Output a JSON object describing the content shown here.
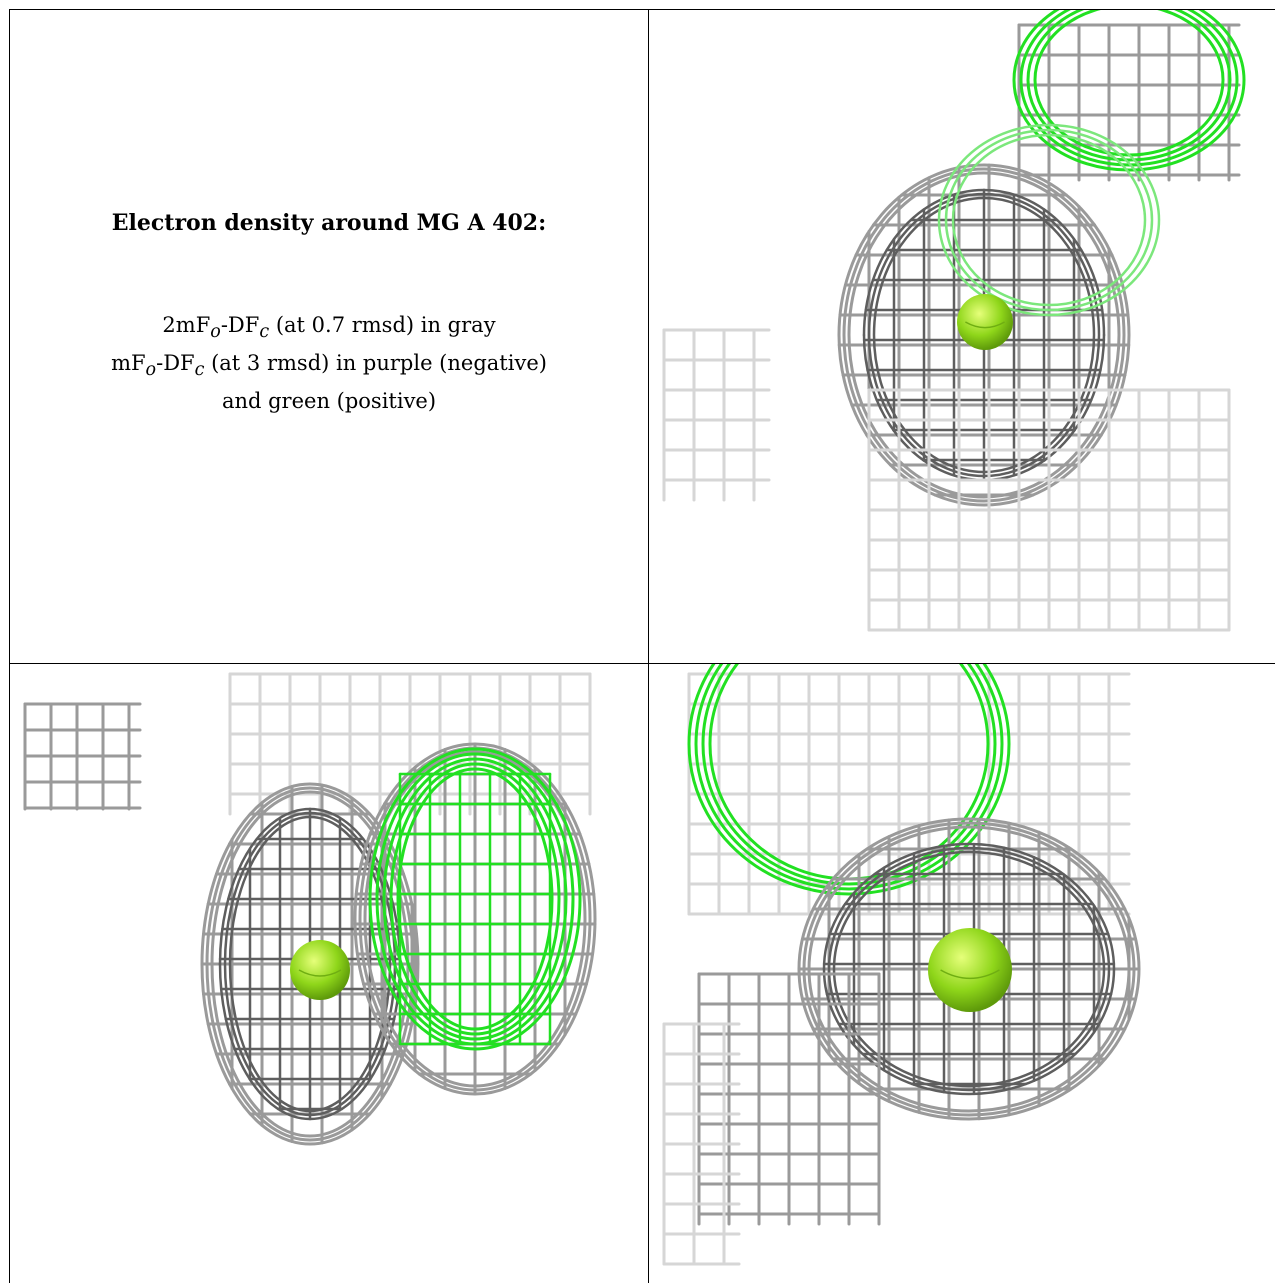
{
  "caption": {
    "title": "Electron density around MG A 402:",
    "line1": {
      "a": "2mF",
      "a_sub": "o",
      "b": "-DF",
      "b_sub": "c",
      "rest": " (at 0.7 rmsd) in gray"
    },
    "line2": {
      "a": "mF",
      "a_sub": "o",
      "b": "-DF",
      "b_sub": "c",
      "rest": " (at 3 rmsd) in purple (negative)"
    },
    "line3": "and green (positive)"
  },
  "colors": {
    "mesh_gray": "#9a9a9a",
    "mesh_light": "#d6d6d6",
    "mesh_dark": "#5e5e5e",
    "mesh_green": "#22e022",
    "atom": "#8fd61a",
    "border": "#000000"
  },
  "panels": [
    {
      "name": "view-top-right",
      "atom": "MG"
    },
    {
      "name": "view-bottom-left",
      "atom": "MG"
    },
    {
      "name": "view-bottom-right",
      "atom": "MG"
    }
  ]
}
